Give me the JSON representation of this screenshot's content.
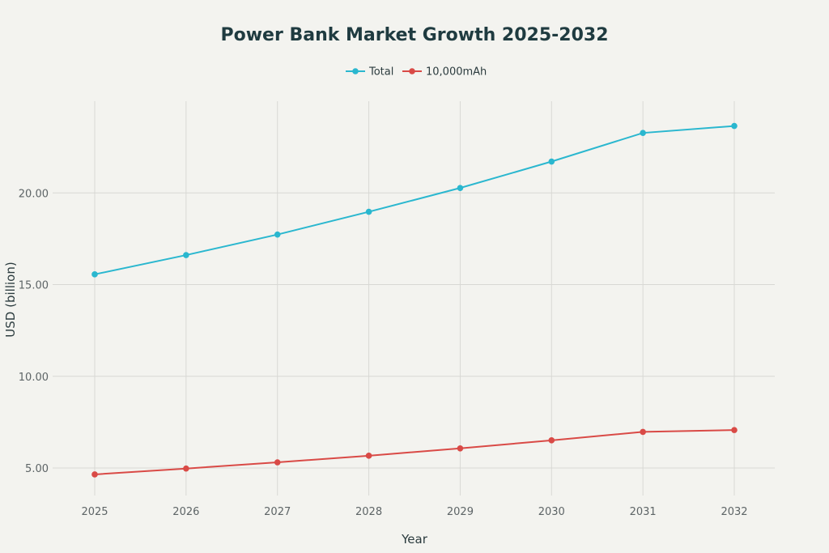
{
  "chart_data": {
    "type": "line",
    "title": "Power Bank Market Growth 2025-2032",
    "xlabel": "Year",
    "ylabel": "USD (billion)",
    "categories": [
      "2025",
      "2026",
      "2027",
      "2028",
      "2029",
      "2030",
      "2031",
      "2032"
    ],
    "y_ticks": [
      "5.00",
      "10.00",
      "15.00",
      "20.00"
    ],
    "y_tick_values": [
      5,
      10,
      15,
      20
    ],
    "ylim": [
      3.5,
      25
    ],
    "grid": true,
    "legend_position": "top-center",
    "series": [
      {
        "name": "Total",
        "color": "#2ab7cf",
        "values": [
          15.56,
          16.61,
          17.73,
          18.97,
          20.27,
          21.71,
          23.27,
          23.65
        ]
      },
      {
        "name": "10,000mAh",
        "color": "#d94a46",
        "values": [
          4.65,
          4.97,
          5.31,
          5.67,
          6.07,
          6.51,
          6.97,
          7.07
        ]
      }
    ]
  }
}
